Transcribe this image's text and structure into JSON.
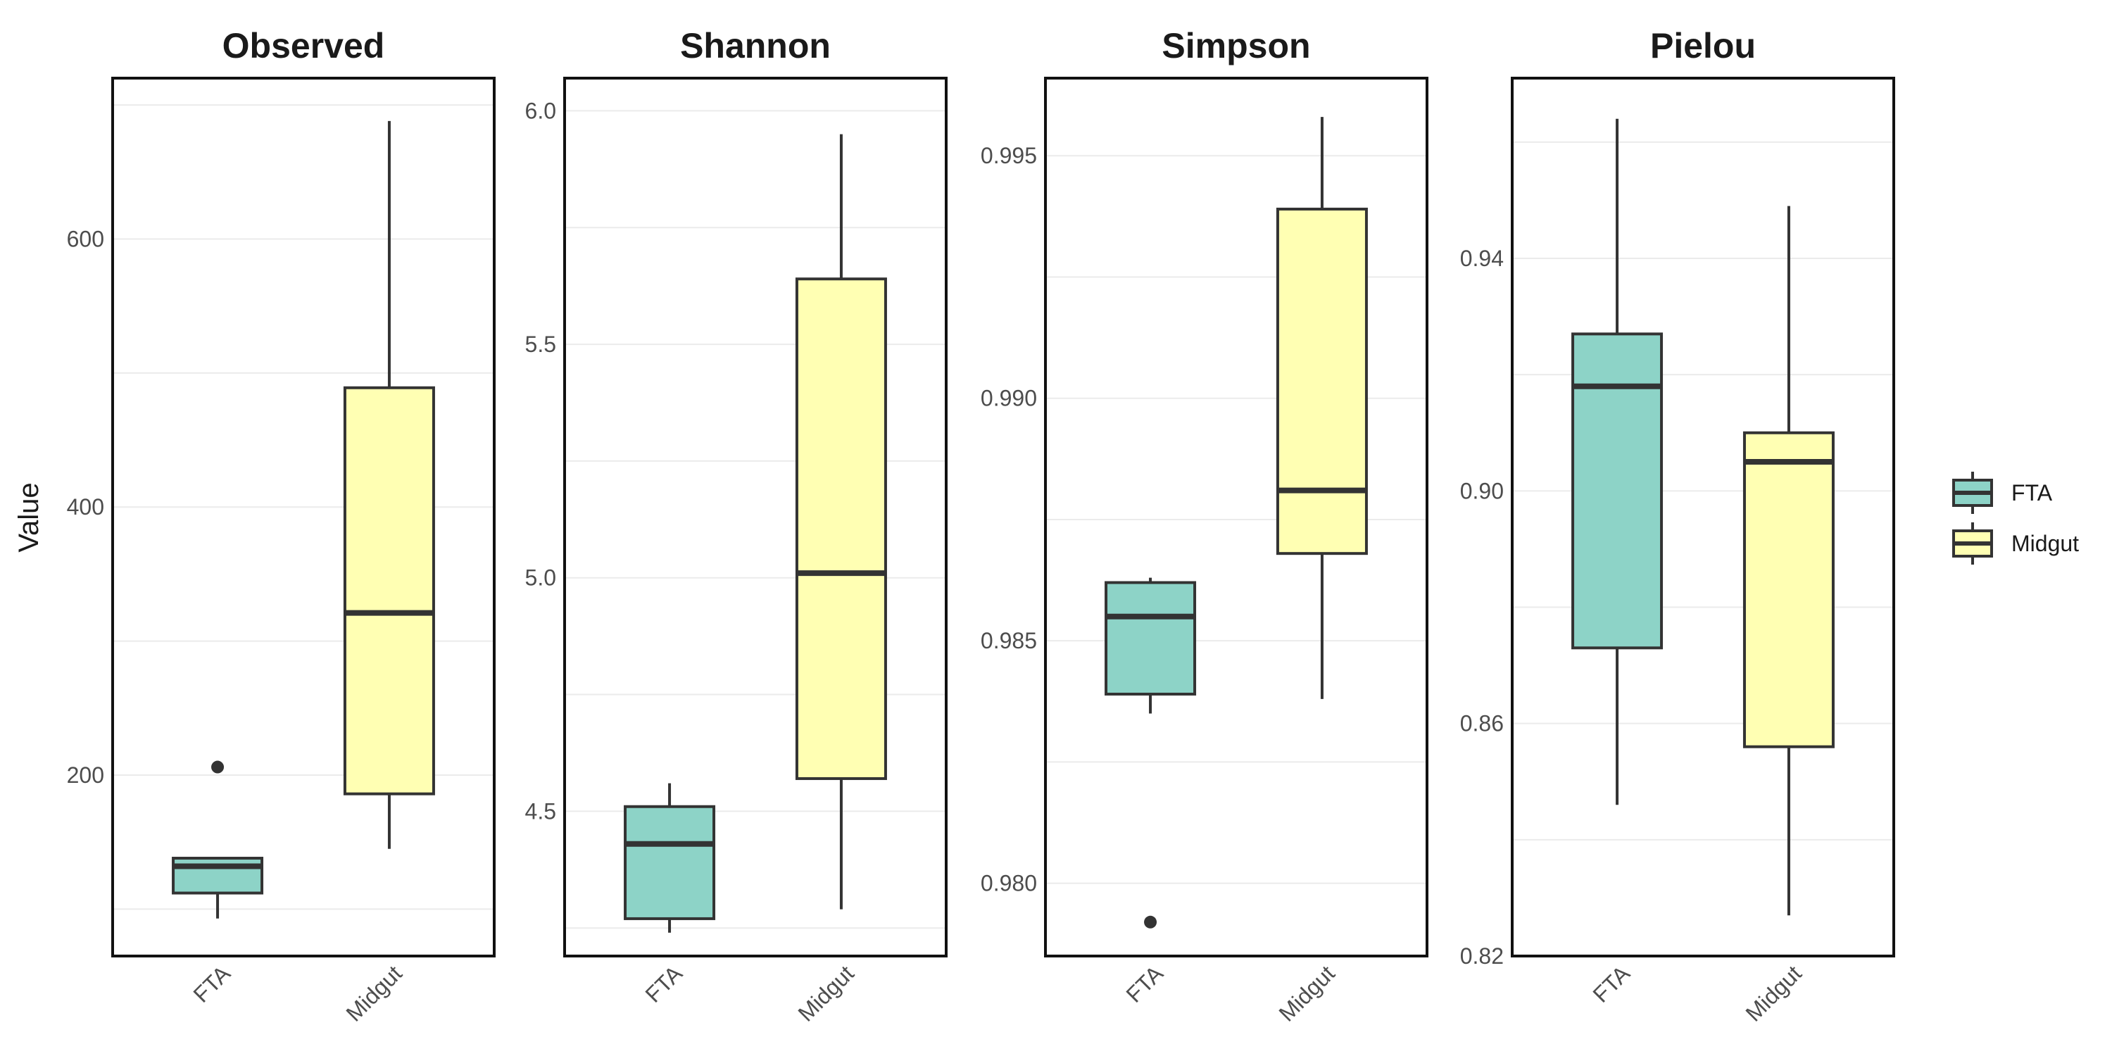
{
  "chart_data": {
    "type": "boxplot",
    "ylabel": "Value",
    "groups": [
      "FTA",
      "Midgut"
    ],
    "colors": {
      "FTA": "#8dd3c7",
      "Midgut": "#ffffb3",
      "outline": "#333333"
    },
    "legend": {
      "placement": "right",
      "items": [
        "FTA",
        "Midgut"
      ]
    },
    "grid": true,
    "panels": [
      {
        "title": "Observed",
        "ylim": [
          65,
          720
        ],
        "yticks": [
          200,
          400,
          600
        ],
        "ytick_labels": [
          "200",
          "400",
          "600"
        ],
        "boxes": [
          {
            "group": "FTA",
            "min": 93,
            "q1": 112,
            "median": 132,
            "q3": 138,
            "max": 138,
            "outliers": [
              206
            ]
          },
          {
            "group": "Midgut",
            "min": 145,
            "q1": 186,
            "median": 321,
            "q3": 489,
            "max": 688,
            "outliers": []
          }
        ]
      },
      {
        "title": "Shannon",
        "ylim": [
          4.19,
          6.07
        ],
        "yticks": [
          4.5,
          5.0,
          5.5,
          6.0
        ],
        "ytick_labels": [
          "4.5",
          "5.0",
          "5.5",
          "6.0"
        ],
        "boxes": [
          {
            "group": "FTA",
            "min": 4.24,
            "q1": 4.27,
            "median": 4.43,
            "q3": 4.51,
            "max": 4.56,
            "outliers": []
          },
          {
            "group": "Midgut",
            "min": 4.29,
            "q1": 4.57,
            "median": 5.01,
            "q3": 5.64,
            "max": 5.95,
            "outliers": []
          }
        ]
      },
      {
        "title": "Simpson",
        "ylim": [
          0.9785,
          0.9966
        ],
        "yticks": [
          0.98,
          0.985,
          0.99,
          0.995
        ],
        "ytick_labels": [
          "0.980",
          "0.985",
          "0.990",
          "0.995"
        ],
        "boxes": [
          {
            "group": "FTA",
            "min": 0.9835,
            "q1": 0.9839,
            "median": 0.9855,
            "q3": 0.9862,
            "max": 0.9863,
            "outliers": [
              0.9792
            ]
          },
          {
            "group": "Midgut",
            "min": 0.9838,
            "q1": 0.9868,
            "median": 0.9881,
            "q3": 0.9939,
            "max": 0.9958,
            "outliers": []
          }
        ]
      },
      {
        "title": "Pielou",
        "ylim": [
          0.82,
          0.971
        ],
        "yticks": [
          0.82,
          0.86,
          0.9,
          0.94
        ],
        "ytick_labels": [
          "0.82",
          "0.86",
          "0.90",
          "0.94"
        ],
        "boxes": [
          {
            "group": "FTA",
            "min": 0.846,
            "q1": 0.873,
            "median": 0.918,
            "q3": 0.927,
            "max": 0.964,
            "outliers": []
          },
          {
            "group": "Midgut",
            "min": 0.827,
            "q1": 0.856,
            "median": 0.905,
            "q3": 0.91,
            "max": 0.949,
            "outliers": []
          }
        ]
      }
    ]
  }
}
